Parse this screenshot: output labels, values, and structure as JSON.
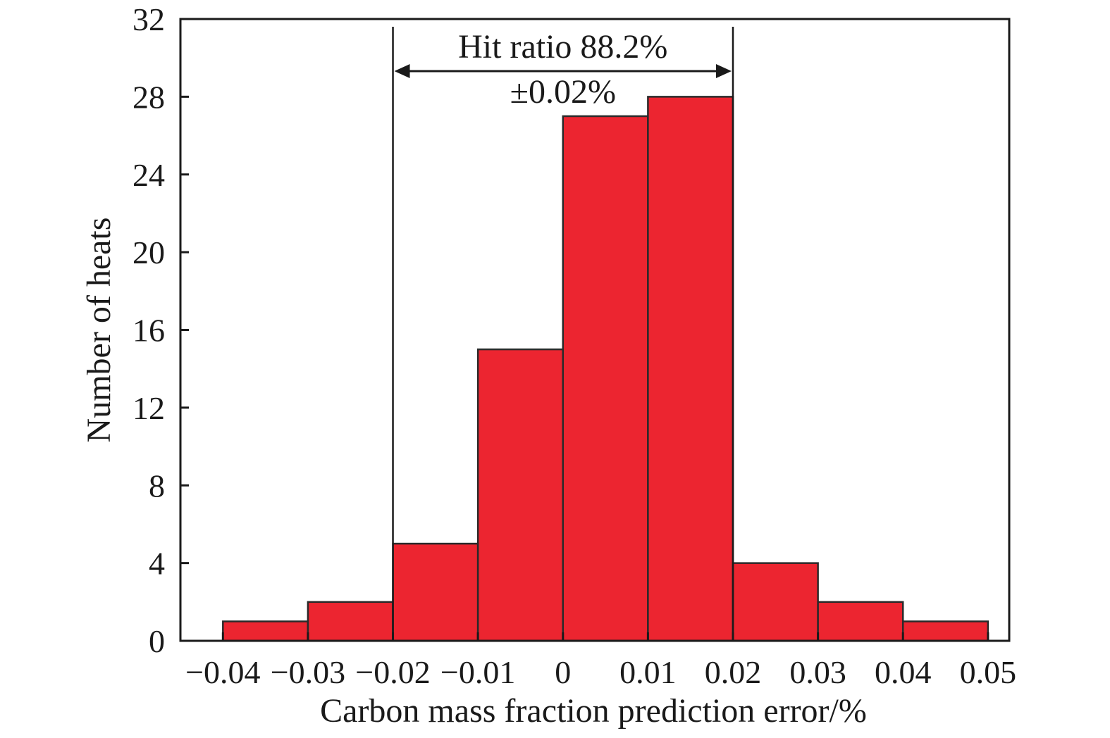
{
  "chart_data": {
    "type": "bar",
    "title": "",
    "xlabel": "Carbon mass fraction prediction error/%",
    "ylabel": "Number of heats",
    "xlim": [
      -0.045,
      0.0525
    ],
    "ylim": [
      0,
      32
    ],
    "x_ticks": [
      -0.04,
      -0.03,
      -0.02,
      -0.01,
      0,
      0.01,
      0.02,
      0.03,
      0.04,
      0.05
    ],
    "x_tick_labels": [
      "−0.04",
      "−0.03",
      "−0.02",
      "−0.01",
      "0",
      "0.01",
      "0.02",
      "0.03",
      "0.04",
      "0.05"
    ],
    "y_ticks": [
      0,
      4,
      8,
      12,
      16,
      20,
      24,
      28,
      32
    ],
    "y_tick_labels": [
      "0",
      "4",
      "8",
      "12",
      "16",
      "20",
      "24",
      "28",
      "32"
    ],
    "bins": [
      {
        "from": -0.04,
        "to": -0.03,
        "count": 1
      },
      {
        "from": -0.03,
        "to": -0.02,
        "count": 2
      },
      {
        "from": -0.02,
        "to": -0.01,
        "count": 5
      },
      {
        "from": -0.01,
        "to": 0.0,
        "count": 15
      },
      {
        "from": 0.0,
        "to": 0.01,
        "count": 27
      },
      {
        "from": 0.01,
        "to": 0.02,
        "count": 28
      },
      {
        "from": 0.02,
        "to": 0.03,
        "count": 4
      },
      {
        "from": 0.03,
        "to": 0.04,
        "count": 2
      },
      {
        "from": 0.04,
        "to": 0.05,
        "count": 1
      }
    ],
    "bar_color": "#ec2530",
    "grid": false,
    "legend": "none",
    "annotation": {
      "range": [
        -0.02,
        0.02
      ],
      "line1": "Hit ratio 88.2%",
      "line2": "±0.02%"
    }
  }
}
